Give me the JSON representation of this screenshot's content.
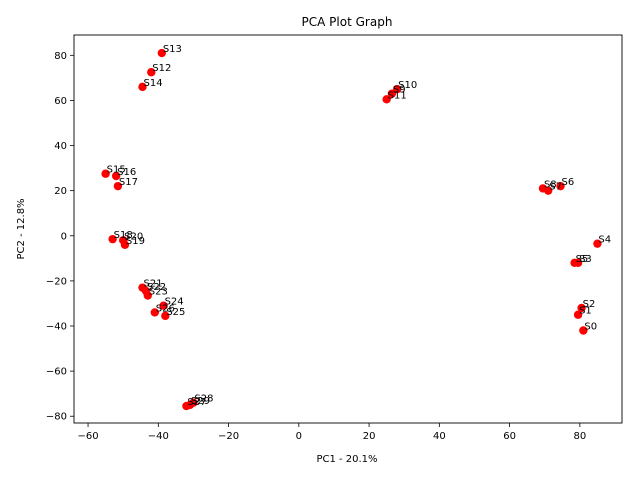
{
  "chart_data": {
    "type": "scatter",
    "title": "PCA Plot Graph",
    "xlabel": "PC1 - 20.1%",
    "ylabel": "PC2 - 12.8%",
    "xlim": [
      -64,
      92
    ],
    "ylim": [
      -83,
      89
    ],
    "xticks": [
      -60,
      -40,
      -20,
      0,
      20,
      40,
      60,
      80
    ],
    "yticks": [
      -80,
      -60,
      -40,
      -20,
      0,
      20,
      40,
      60,
      80
    ],
    "grid": false,
    "marker_color": "#ff0000",
    "points": [
      {
        "label": "S0",
        "x": 81,
        "y": -42
      },
      {
        "label": "S1",
        "x": 79.5,
        "y": -35
      },
      {
        "label": "S2",
        "x": 80.5,
        "y": -32
      },
      {
        "label": "S3",
        "x": 79.5,
        "y": -12
      },
      {
        "label": "S4",
        "x": 85,
        "y": -3.5
      },
      {
        "label": "S5",
        "x": 78.5,
        "y": -12
      },
      {
        "label": "S6",
        "x": 74.5,
        "y": 22
      },
      {
        "label": "S7",
        "x": 71,
        "y": 20
      },
      {
        "label": "S8",
        "x": 69.5,
        "y": 21
      },
      {
        "label": "S9",
        "x": 26.5,
        "y": 63
      },
      {
        "label": "S10",
        "x": 28,
        "y": 65
      },
      {
        "label": "S11",
        "x": 25,
        "y": 60.5
      },
      {
        "label": "S12",
        "x": -42,
        "y": 72.5
      },
      {
        "label": "S13",
        "x": -39,
        "y": 81
      },
      {
        "label": "S14",
        "x": -44.5,
        "y": 66
      },
      {
        "label": "S15",
        "x": -55,
        "y": 27.5
      },
      {
        "label": "S16",
        "x": -52,
        "y": 26.5
      },
      {
        "label": "S17",
        "x": -51.5,
        "y": 22
      },
      {
        "label": "S18",
        "x": -53,
        "y": -1.5
      },
      {
        "label": "S19",
        "x": -49.5,
        "y": -4
      },
      {
        "label": "S20",
        "x": -50,
        "y": -2
      },
      {
        "label": "S21",
        "x": -44.5,
        "y": -23
      },
      {
        "label": "S22",
        "x": -43.5,
        "y": -24.5
      },
      {
        "label": "S23",
        "x": -43,
        "y": -26.5
      },
      {
        "label": "S24",
        "x": -38.5,
        "y": -31
      },
      {
        "label": "S25",
        "x": -38,
        "y": -35.5
      },
      {
        "label": "S26",
        "x": -41,
        "y": -34
      },
      {
        "label": "S27",
        "x": -32,
        "y": -75.5
      },
      {
        "label": "S28",
        "x": -30,
        "y": -74
      },
      {
        "label": "S29",
        "x": -31,
        "y": -75
      }
    ]
  }
}
